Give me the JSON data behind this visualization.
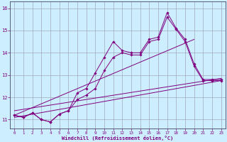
{
  "x": [
    0,
    1,
    2,
    3,
    4,
    5,
    6,
    7,
    8,
    9,
    10,
    11,
    12,
    13,
    14,
    15,
    16,
    17,
    18,
    19,
    20,
    21,
    22,
    23
  ],
  "line1": [
    11.2,
    11.1,
    11.3,
    11.0,
    10.9,
    11.25,
    11.4,
    12.2,
    12.4,
    13.1,
    13.8,
    14.5,
    14.1,
    14.0,
    14.0,
    14.6,
    14.7,
    15.8,
    15.1,
    14.6,
    13.5,
    12.8,
    12.8,
    12.8
  ],
  "line2": [
    11.2,
    11.1,
    11.3,
    11.0,
    10.9,
    11.25,
    11.4,
    11.9,
    12.1,
    12.4,
    13.2,
    13.8,
    14.0,
    13.9,
    13.9,
    14.5,
    14.6,
    15.6,
    15.05,
    14.5,
    13.4,
    12.75,
    12.75,
    12.75
  ],
  "trend1_x": [
    0,
    20
  ],
  "trend1_y": [
    11.2,
    14.6
  ],
  "trend2_x": [
    0,
    23
  ],
  "trend2_y": [
    11.1,
    12.75
  ],
  "trend3_x": [
    0,
    23
  ],
  "trend3_y": [
    11.4,
    12.85
  ],
  "color": "#800080",
  "bg_color": "#cceeff",
  "grid_color": "#9999aa",
  "ylim": [
    10.6,
    16.3
  ],
  "xlim": [
    -0.5,
    23.5
  ],
  "xlabel": "Windchill (Refroidissement éolien,°C)",
  "yticks": [
    11,
    12,
    13,
    14,
    15,
    16
  ],
  "xticks": [
    0,
    1,
    2,
    3,
    4,
    5,
    6,
    7,
    8,
    9,
    10,
    11,
    12,
    13,
    14,
    15,
    16,
    17,
    18,
    19,
    20,
    21,
    22,
    23
  ]
}
